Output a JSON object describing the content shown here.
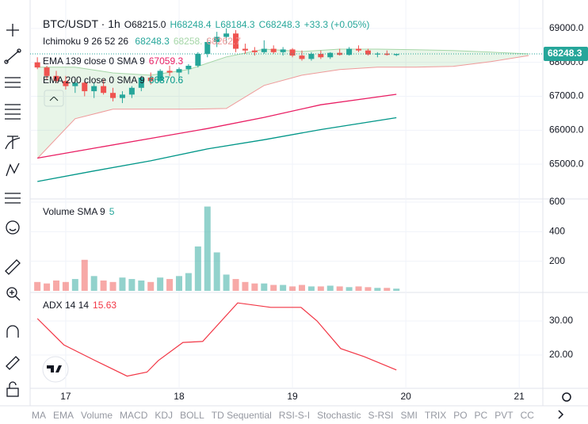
{
  "bottom_bar": {
    "items": [
      "MA",
      "EMA",
      "Volume",
      "MACD",
      "KDJ",
      "BOLL",
      "TD Sequential",
      "RSI-S-I",
      "Stochastic",
      "S-RSI",
      "SMI",
      "TRIX",
      "PO",
      "PC",
      "PVT",
      "CC"
    ]
  },
  "chart_data": [
    {
      "type": "candlestick",
      "title": "BTC/USDT · 1h",
      "ohlc_legend": [
        "O68215.0",
        "H68248.4",
        "L68184.3",
        "C68248.3",
        "+33.3 (+0.05%)"
      ],
      "colors": {
        "up": "#26a69a",
        "down": "#ef5350"
      },
      "open": [
        68000,
        67850,
        67600,
        67450,
        67300,
        67400,
        67150,
        67300,
        67100,
        66950,
        67050,
        67250,
        67550,
        67450,
        67750,
        67700,
        67800,
        67900,
        68250,
        68600,
        68750,
        68850,
        68400,
        68350,
        68300,
        68400,
        68300,
        68380,
        68200,
        68100,
        68250,
        68150,
        68280,
        68220,
        68400,
        68350,
        68230,
        68260,
        68215
      ],
      "high": [
        68150,
        67900,
        67750,
        67600,
        67500,
        67450,
        67400,
        67500,
        67250,
        67150,
        67300,
        67600,
        67700,
        67800,
        67900,
        67850,
        67950,
        68300,
        68700,
        68900,
        69000,
        68950,
        68550,
        68450,
        68650,
        68500,
        68450,
        68420,
        68350,
        68300,
        68350,
        68300,
        68400,
        68450,
        68500,
        68400,
        68300,
        68350,
        68248.4
      ],
      "low": [
        67800,
        67500,
        67400,
        67200,
        67100,
        67000,
        66950,
        67050,
        66850,
        66800,
        66950,
        67150,
        67350,
        67400,
        67600,
        67500,
        67650,
        67850,
        68150,
        68450,
        68550,
        68300,
        68250,
        68200,
        68250,
        68250,
        68200,
        68150,
        68050,
        68050,
        68100,
        68100,
        68200,
        68200,
        68300,
        68200,
        68150,
        68200,
        68184.3
      ],
      "close": [
        67850,
        67600,
        67450,
        67300,
        67400,
        67150,
        67300,
        67100,
        66950,
        67050,
        67250,
        67550,
        67450,
        67750,
        67700,
        67800,
        67900,
        68250,
        68600,
        68750,
        68850,
        68400,
        68350,
        68300,
        68400,
        68300,
        68380,
        68200,
        68100,
        68250,
        68150,
        68280,
        68220,
        68400,
        68350,
        68230,
        68260,
        68220,
        68248.3
      ],
      "xlim": [
        -0.6,
        53.5
      ],
      "xticks": [
        {
          "value": 3,
          "label": "17"
        },
        {
          "value": 15,
          "label": "18"
        },
        {
          "value": 27,
          "label": "19"
        },
        {
          "value": 39,
          "label": "20"
        },
        {
          "value": 51,
          "label": "21"
        }
      ],
      "ylim": [
        64000,
        69650
      ],
      "yticks": [
        {
          "value": 69000,
          "label": "69000.0"
        },
        {
          "value": 68000,
          "label": "68000.0"
        },
        {
          "value": 67000,
          "label": "67000.0"
        },
        {
          "value": 66000,
          "label": "66000.0"
        },
        {
          "value": 65000,
          "label": "65000.0"
        }
      ],
      "last_price": {
        "value": 68248.3,
        "label": "68248.3"
      },
      "ichimoku": {
        "name": "Ichimoku 9 26 52 26",
        "legend_values": [
          "68248.3",
          "68258.",
          "68262.7"
        ],
        "x": [
          0,
          4,
          8,
          12,
          16,
          20,
          24,
          28,
          32,
          36,
          40,
          44,
          48,
          52
        ],
        "span_a": [
          67860,
          67860,
          67690,
          67620,
          67790,
          68160,
          68390,
          68320,
          68390,
          68390,
          68370,
          68350,
          68300,
          68250
        ],
        "span_b": [
          65170,
          66340,
          66620,
          66620,
          66620,
          66640,
          67320,
          67620,
          67790,
          67860,
          67860,
          67880,
          68020,
          68200
        ]
      },
      "series": [
        {
          "name": "EMA 139 close 0 SMA 9",
          "legend_value": "67059.3",
          "color": "#e91e63",
          "x": [
            0,
            6,
            12,
            18,
            24,
            30,
            38
          ],
          "values": [
            65180,
            65470,
            65760,
            66050,
            66380,
            66750,
            67059.3
          ]
        },
        {
          "name": "EMA 200 close 0 SMA 9",
          "legend_value": "66370.6",
          "color": "#009688",
          "x": [
            0,
            6,
            12,
            18,
            24,
            30,
            38
          ],
          "values": [
            64490,
            64800,
            65100,
            65450,
            65720,
            66020,
            66370.6
          ]
        }
      ]
    },
    {
      "type": "bar",
      "title": "Volume SMA 9",
      "legend_value": "5",
      "values": [
        60,
        50,
        70,
        60,
        80,
        210,
        100,
        70,
        60,
        90,
        80,
        70,
        60,
        90,
        80,
        100,
        120,
        300,
        570,
        260,
        110,
        80,
        60,
        50,
        50,
        40,
        40,
        30,
        40,
        30,
        30,
        35,
        30,
        25,
        30,
        25,
        20,
        20,
        15
      ],
      "ylim": [
        0,
        600
      ],
      "yticks": [
        600,
        400,
        200
      ]
    },
    {
      "type": "line",
      "title": "ADX 14 14",
      "legend_value": "15.63",
      "color": "#f23645",
      "x": [
        0,
        2.8,
        6.1,
        9.5,
        11.6,
        12.8,
        15.4,
        17.5,
        21.2,
        24.7,
        27.9,
        29.6,
        32.1,
        34.6,
        38
      ],
      "values": [
        30.7,
        23,
        18.4,
        13.8,
        15,
        18.4,
        23.7,
        24,
        35.3,
        34,
        34,
        30,
        21.9,
        19.5,
        15.63
      ],
      "ylim": [
        10.23,
        37.67
      ],
      "yticks": [
        {
          "value": 30,
          "label": "30.00"
        },
        {
          "value": 20,
          "label": "20.00"
        }
      ]
    }
  ]
}
